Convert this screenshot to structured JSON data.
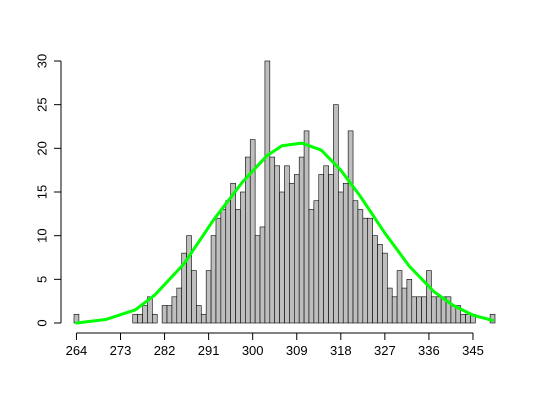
{
  "chart_data": {
    "type": "bar",
    "title": "",
    "xlabel": "",
    "ylabel": "",
    "bin_start": 264,
    "bin_width": 1,
    "values": [
      1,
      0,
      0,
      0,
      0,
      0,
      0,
      0,
      0,
      0,
      0,
      0,
      1,
      1,
      2,
      3,
      1,
      0,
      2,
      2,
      3,
      4,
      8,
      10,
      6,
      2,
      1,
      6,
      10,
      12,
      13,
      14,
      16,
      13,
      15,
      19,
      21,
      10,
      11,
      30,
      19,
      18,
      15,
      18,
      16,
      17,
      19,
      22,
      13,
      14,
      17,
      18,
      17,
      25,
      15,
      16,
      22,
      14,
      13,
      12,
      12,
      10,
      9,
      8,
      4,
      3,
      6,
      4,
      5,
      3,
      3,
      3,
      6,
      3,
      3,
      3,
      3,
      2,
      2,
      1,
      1,
      1,
      0,
      0,
      0,
      1
    ],
    "xticks": [
      "264",
      "273",
      "282",
      "291",
      "300",
      "309",
      "318",
      "327",
      "336",
      "345"
    ],
    "xtick_values": [
      264,
      273,
      282,
      291,
      300,
      309,
      318,
      327,
      336,
      345
    ],
    "yticks": [
      "0",
      "5",
      "10",
      "15",
      "20",
      "25",
      "30"
    ],
    "ylim": [
      0,
      30
    ],
    "xlim": [
      263.5,
      349.5
    ],
    "density_curve": {
      "color": "#00ff00",
      "points": [
        [
          264,
          0
        ],
        [
          270,
          0.4
        ],
        [
          276,
          1.5
        ],
        [
          280,
          3.2
        ],
        [
          286,
          6.8
        ],
        [
          292,
          11.8
        ],
        [
          298,
          16.2
        ],
        [
          303,
          19.2
        ],
        [
          306,
          20.3
        ],
        [
          310,
          20.6
        ],
        [
          314,
          19.8
        ],
        [
          318,
          17.5
        ],
        [
          322,
          14.5
        ],
        [
          327,
          10.3
        ],
        [
          332,
          6.5
        ],
        [
          337,
          3.6
        ],
        [
          341,
          2.0
        ],
        [
          345,
          0.9
        ],
        [
          349,
          0.3
        ]
      ]
    },
    "colors": {
      "bar_fill": "#bebebe",
      "bar_stroke": "#000000",
      "curve": "#00ff00"
    },
    "grid": false,
    "legend": "none"
  }
}
